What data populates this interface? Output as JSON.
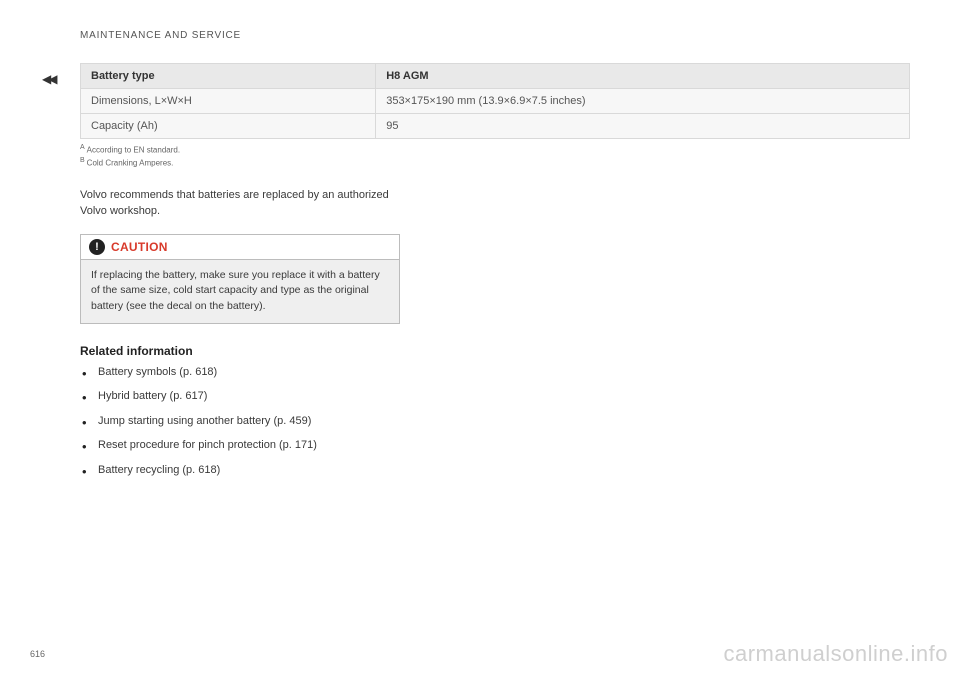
{
  "header": {
    "running_head": "MAINTENANCE AND SERVICE"
  },
  "continue_marker": "◀◀",
  "spec_table": {
    "head": {
      "c1": "Battery type",
      "c2": "H8 AGM"
    },
    "rows": [
      {
        "c1": "Dimensions, L×W×H",
        "c2": "353×175×190 mm (13.9×6.9×7.5 inches)"
      },
      {
        "c1": "Capacity (Ah)",
        "c2": "95"
      }
    ]
  },
  "footnotes": {
    "a_sup": "A",
    "a_text": "According to EN standard.",
    "b_sup": "B",
    "b_text": "Cold Cranking Amperes."
  },
  "body_text": "Volvo recommends that batteries are replaced by an authorized Volvo workshop.",
  "caution": {
    "icon_glyph": "!",
    "label": "CAUTION",
    "body": "If replacing the battery, make sure you replace it with a battery of the same size, cold start capacity and type as the original battery (see the decal on the battery)."
  },
  "related": {
    "heading": "Related information",
    "items": [
      "Battery symbols (p. 618)",
      "Hybrid battery (p. 617)",
      "Jump starting using another battery (p. 459)",
      "Reset procedure for pinch protection (p. 171)",
      "Battery recycling (p. 618)"
    ]
  },
  "page_number": "616",
  "watermark": "carmanualsonline.info",
  "colors": {
    "caution_red": "#d83a2b",
    "text_gray": "#4a4a4a",
    "border_gray": "#d9d9d9",
    "row_bg": "#f7f7f7",
    "head_bg": "#e9e9e9",
    "watermark_gray": "#cfcfcf"
  }
}
